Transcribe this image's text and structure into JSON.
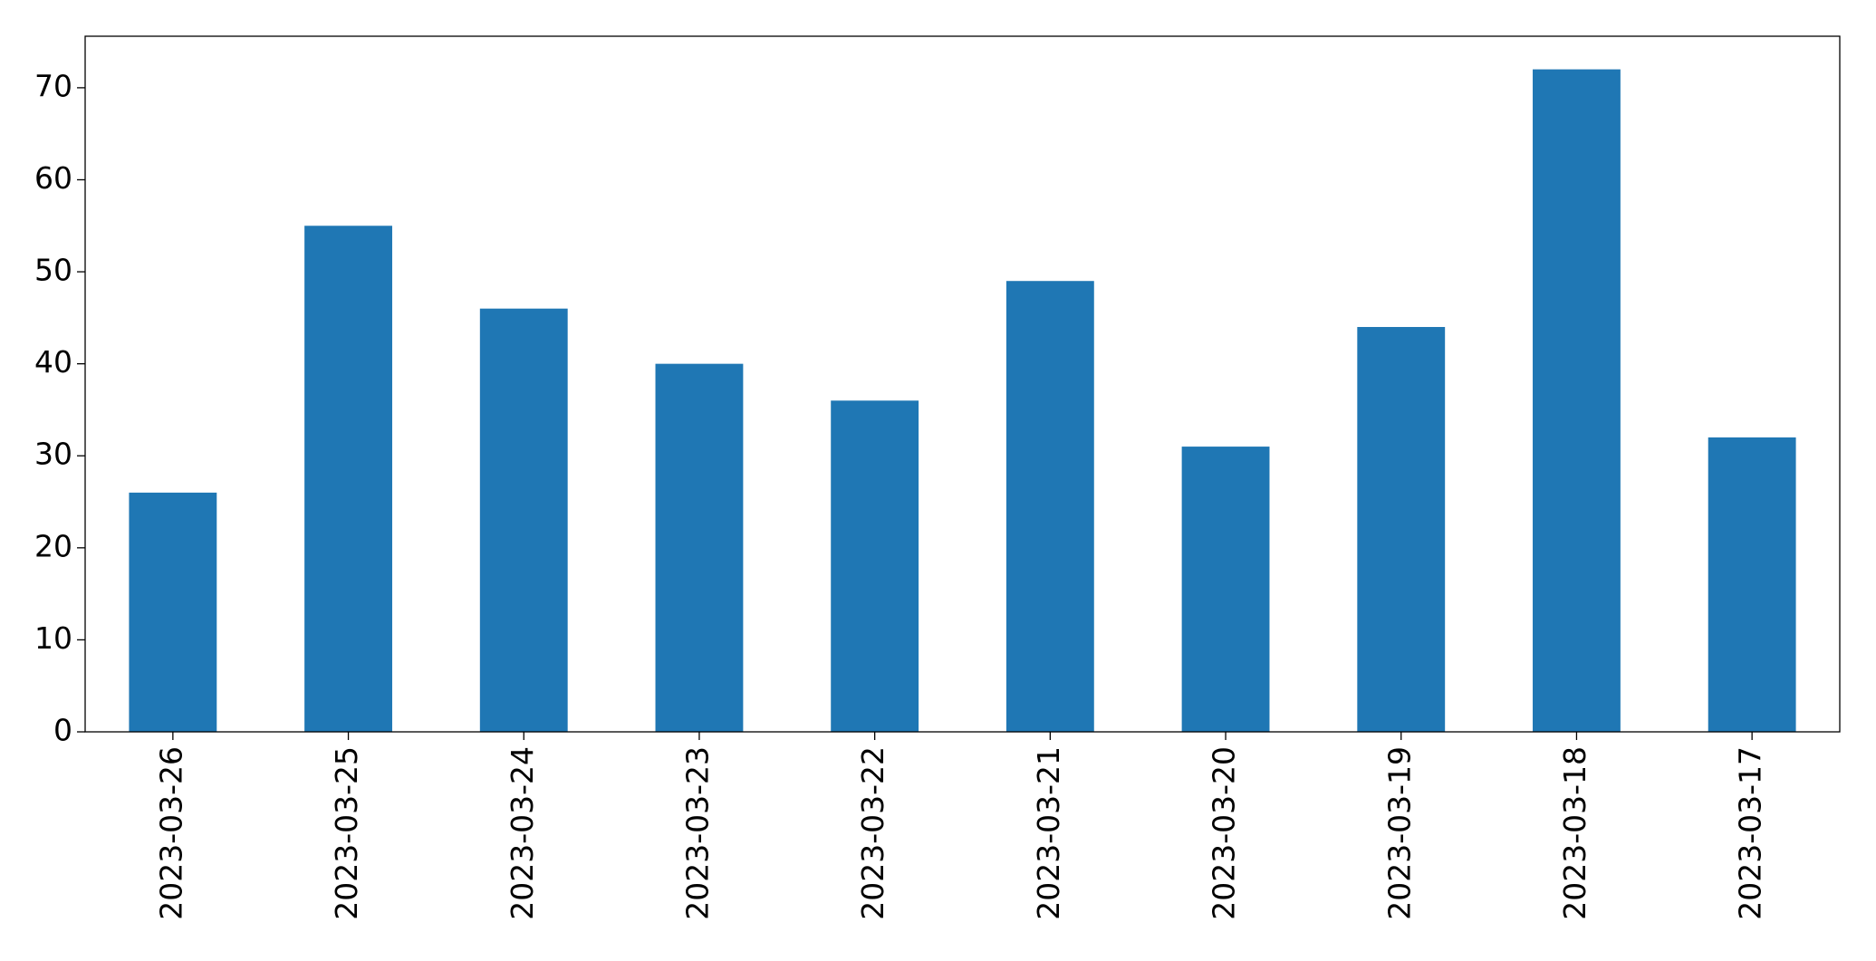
{
  "chart_data": {
    "type": "bar",
    "categories": [
      "2023-03-26",
      "2023-03-25",
      "2023-03-24",
      "2023-03-23",
      "2023-03-22",
      "2023-03-21",
      "2023-03-20",
      "2023-03-19",
      "2023-03-18",
      "2023-03-17"
    ],
    "values": [
      26,
      55,
      46,
      40,
      36,
      49,
      31,
      44,
      72,
      32
    ],
    "color": "#1f77b4",
    "ylim": [
      0,
      75.6
    ],
    "yticks": [
      0,
      10,
      20,
      30,
      40,
      50,
      60,
      70
    ],
    "grid": false
  }
}
